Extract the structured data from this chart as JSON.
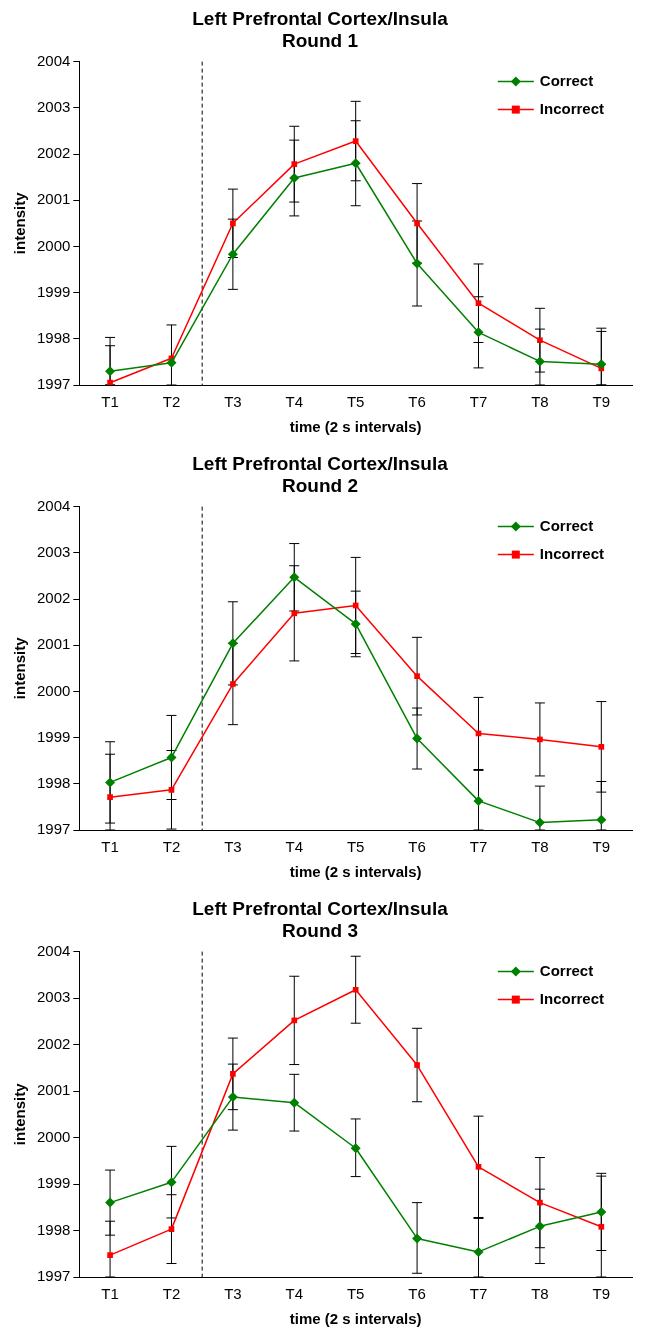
{
  "chart_data": [
    {
      "type": "line",
      "title": "Left Prefrontal Cortex/Insula",
      "subtitle": "Round 1",
      "xlabel": "time (2 s intervals)",
      "ylabel": "intensity",
      "categories": [
        "T1",
        "T2",
        "T3",
        "T4",
        "T5",
        "T6",
        "T7",
        "T8",
        "T9"
      ],
      "ylim": [
        1997,
        2004
      ],
      "yticks": [
        1997,
        1998,
        1999,
        2000,
        2001,
        2002,
        2003,
        2004
      ],
      "grid": false,
      "legend": "top right",
      "series": [
        {
          "name": "Correct",
          "color": "#008000",
          "marker": "diamond",
          "values": [
            1997.3,
            1997.48,
            1999.83,
            2001.48,
            2001.8,
            1999.63,
            1998.14,
            1997.51,
            1997.45
          ],
          "errors": [
            [
              1997,
              1997.85
            ],
            [
              1997,
              1998.3
            ],
            [
              1999.07,
              2000.59
            ],
            [
              2000.66,
              2002.3
            ],
            [
              2000.88,
              2002.72
            ],
            [
              1998.71,
              2000.55
            ],
            [
              1997.37,
              1998.91
            ],
            [
              1997,
              1998.21
            ],
            [
              1997,
              1998.23
            ]
          ]
        },
        {
          "name": "Incorrect",
          "color": "#ff0000",
          "marker": "square",
          "values": [
            1997.05,
            1997.58,
            2000.5,
            2001.78,
            2002.28,
            2000.5,
            1998.77,
            1997.97,
            1997.36
          ],
          "errors": [
            [
              1997,
              1998.03
            ],
            null,
            [
              1999.76,
              2001.24
            ],
            [
              2000.96,
              2002.6
            ],
            [
              2001.42,
              2003.14
            ],
            [
              1999.64,
              2001.36
            ],
            [
              1997.92,
              1999.62
            ],
            [
              1997.28,
              1998.66
            ],
            [
              1997,
              1998.16
            ]
          ]
        }
      ]
    },
    {
      "type": "line",
      "title": "Left Prefrontal Cortex/Insula",
      "subtitle": "Round 2",
      "xlabel": "time (2 s intervals)",
      "ylabel": "intensity",
      "categories": [
        "T1",
        "T2",
        "T3",
        "T4",
        "T5",
        "T6",
        "T7",
        "T8",
        "T9"
      ],
      "ylim": [
        1997,
        2004
      ],
      "yticks": [
        1997,
        1998,
        1999,
        2000,
        2001,
        2002,
        2003,
        2004
      ],
      "grid": false,
      "legend": "top right",
      "series": [
        {
          "name": "Correct",
          "color": "#008000",
          "marker": "diamond",
          "values": [
            1998.03,
            1998.57,
            2001.04,
            2002.47,
            2001.46,
            1998.98,
            1997.63,
            1997.16,
            1997.22
          ],
          "errors": [
            [
              1997.15,
              1998.91
            ],
            [
              1997.66,
              1999.48
            ],
            [
              2000.14,
              2001.94
            ],
            [
              2001.74,
              2003.2
            ],
            [
              2000.75,
              2002.17
            ],
            [
              1998.32,
              1999.64
            ],
            [
              1997,
              1998.29
            ],
            [
              1997,
              1997.95
            ],
            [
              1997,
              1998.05
            ]
          ]
        },
        {
          "name": "Incorrect",
          "color": "#ff0000",
          "marker": "square",
          "values": [
            1997.71,
            1997.87,
            2000.16,
            2001.69,
            2001.86,
            2000.33,
            1999.09,
            1998.96,
            1998.8
          ],
          "errors": [
            [
              1997,
              1998.64
            ],
            [
              1997.02,
              1998.72
            ],
            [
              1999.28,
              2001.04
            ],
            [
              2000.66,
              2002.72
            ],
            [
              2000.82,
              2002.9
            ],
            [
              1999.49,
              2001.17
            ],
            [
              1998.31,
              1999.87
            ],
            [
              1998.17,
              1999.75
            ],
            [
              1997.82,
              1999.78
            ]
          ]
        }
      ]
    },
    {
      "type": "line",
      "title": "Left Prefrontal Cortex/Insula",
      "subtitle": "Round 3",
      "xlabel": "time (2 s intervals)",
      "ylabel": "intensity",
      "categories": [
        "T1",
        "T2",
        "T3",
        "T4",
        "T5",
        "T6",
        "T7",
        "T8",
        "T9"
      ],
      "ylim": [
        1997,
        2004
      ],
      "yticks": [
        1997,
        1998,
        1999,
        2000,
        2001,
        2002,
        2003,
        2004
      ],
      "grid": false,
      "legend": "top right",
      "series": [
        {
          "name": "Correct",
          "color": "#008000",
          "marker": "diamond",
          "values": [
            1998.6,
            1999.04,
            2000.87,
            2000.75,
            1999.77,
            1997.83,
            1997.54,
            1998.09,
            1998.4
          ],
          "errors": [
            [
              1997.9,
              1999.3
            ],
            [
              1998.27,
              1999.81
            ],
            [
              2000.16,
              2001.58
            ],
            [
              2000.14,
              2001.36
            ],
            [
              1999.16,
              2000.4
            ],
            [
              1997.08,
              1998.6
            ],
            [
              1997,
              1998.26
            ],
            [
              1997.29,
              1998.89
            ],
            [
              1997.57,
              1999.23
            ]
          ]
        },
        {
          "name": "Incorrect",
          "color": "#ff0000",
          "marker": "square",
          "values": [
            1997.47,
            1998.03,
            2001.37,
            2002.52,
            2003.18,
            2001.56,
            1999.37,
            1998.6,
            1998.08
          ],
          "errors": [
            [
              1997,
              1998.2
            ],
            [
              1997.29,
              1998.77
            ],
            [
              2000.6,
              2002.14
            ],
            [
              2001.57,
              2003.47
            ],
            [
              2002.46,
              2003.9
            ],
            [
              2000.77,
              2002.35
            ],
            [
              1998.28,
              2000.46
            ],
            [
              1997.63,
              1999.57
            ],
            [
              1997,
              1999.17
            ]
          ]
        }
      ]
    }
  ]
}
